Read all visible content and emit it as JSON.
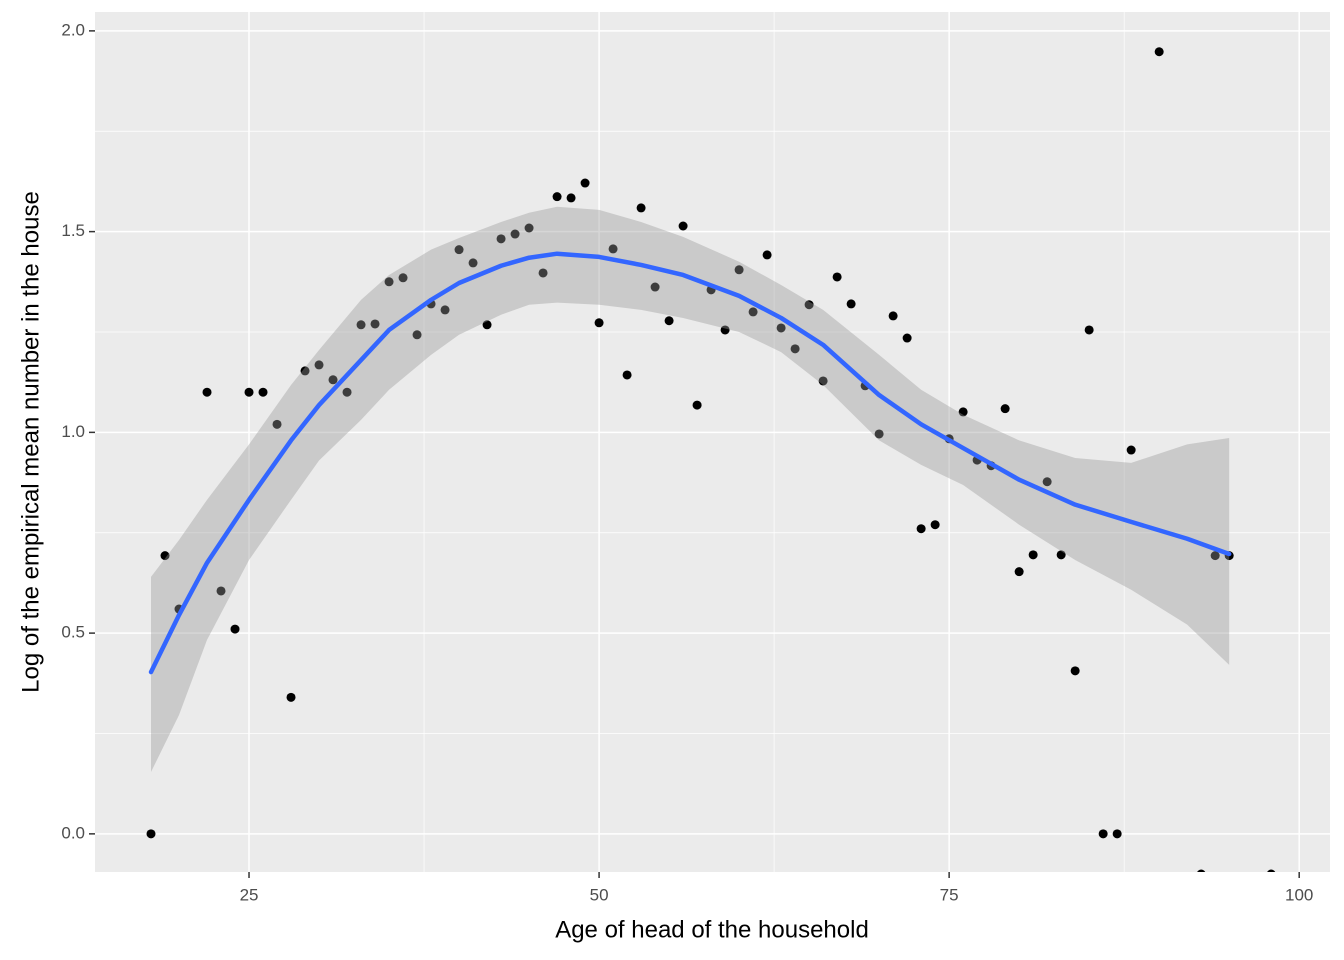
{
  "chart_data": {
    "type": "scatter",
    "x_label": "Age of head of the household",
    "y_label": "Log of the empirical mean number in the house",
    "xlim": [
      14.0,
      102.2
    ],
    "ylim": [
      -0.095,
      2.047
    ],
    "xticks": [
      25,
      50,
      75,
      100
    ],
    "yticks": [
      {
        "value": 0,
        "label": "0.0"
      },
      {
        "value": 0.5,
        "label": "0.5"
      },
      {
        "value": 1,
        "label": "1.0"
      },
      {
        "value": 1.5,
        "label": "1.5"
      },
      {
        "value": 2,
        "label": "2.0"
      }
    ],
    "minor_xticks": [
      37.5,
      62.5,
      87.5
    ],
    "minor_yticks": [
      0.25,
      0.75,
      1.25,
      1.75
    ],
    "grid": true,
    "points": {
      "color": "#000000",
      "x": [
        18,
        19,
        20,
        22,
        23,
        24,
        25,
        26,
        27,
        28,
        29,
        30,
        31,
        32,
        33,
        34,
        35,
        36,
        37,
        38,
        39,
        40,
        41,
        42,
        43,
        44,
        45,
        46,
        47,
        48,
        49,
        50,
        51,
        52,
        53,
        54,
        55,
        56,
        57,
        58,
        59,
        60,
        61,
        62,
        63,
        64,
        65,
        66,
        67,
        68,
        69,
        70,
        71,
        72,
        73,
        74,
        75,
        76,
        77,
        78,
        79,
        80,
        81,
        82,
        83,
        84,
        85,
        86,
        87,
        88,
        90,
        93,
        94,
        95,
        98
      ],
      "y": [
        0,
        0.693,
        0.56,
        1.1,
        0.605,
        0.51,
        1.1,
        1.1,
        1.02,
        0.34,
        1.153,
        1.168,
        1.131,
        1.1,
        1.268,
        1.27,
        1.375,
        1.385,
        1.243,
        1.32,
        1.305,
        1.455,
        1.422,
        1.268,
        1.482,
        1.494,
        1.509,
        1.397,
        1.587,
        1.584,
        1.621,
        1.273,
        1.457,
        1.143,
        1.559,
        1.362,
        1.278,
        1.514,
        1.068,
        1.355,
        1.255,
        1.405,
        1.3,
        1.442,
        1.26,
        1.208,
        1.318,
        1.128,
        1.387,
        1.32,
        1.116,
        0.996,
        1.29,
        1.235,
        0.76,
        0.77,
        0.984,
        1.051,
        0.931,
        0.917,
        1.059,
        0.653,
        0.695,
        0.877,
        0.695,
        0.406,
        1.255,
        0,
        0,
        0.956,
        1.948,
        -0.1,
        0.693,
        0.693,
        -0.1
      ]
    },
    "smooth": {
      "color": "#3366FF",
      "fill": "#999999",
      "x": [
        18,
        20,
        22,
        25,
        28,
        30,
        33,
        35,
        38,
        40,
        43,
        45,
        47,
        50,
        53,
        56,
        60,
        63,
        66,
        70,
        73,
        76,
        80,
        84,
        88,
        92,
        95
      ],
      "y": [
        0.403,
        0.545,
        0.675,
        0.832,
        0.98,
        1.068,
        1.18,
        1.255,
        1.33,
        1.372,
        1.415,
        1.435,
        1.445,
        1.437,
        1.417,
        1.392,
        1.34,
        1.285,
        1.218,
        1.093,
        1.02,
        0.961,
        0.882,
        0.82,
        0.777,
        0.735,
        0.697
      ],
      "upper": [
        0.64,
        0.732,
        0.832,
        0.97,
        1.118,
        1.205,
        1.33,
        1.392,
        1.455,
        1.484,
        1.524,
        1.547,
        1.562,
        1.554,
        1.524,
        1.487,
        1.425,
        1.367,
        1.305,
        1.193,
        1.106,
        1.044,
        0.98,
        0.936,
        0.924,
        0.97,
        0.986
      ],
      "lower": [
        0.154,
        0.296,
        0.483,
        0.682,
        0.832,
        0.93,
        1.031,
        1.106,
        1.193,
        1.243,
        1.293,
        1.318,
        1.323,
        1.318,
        1.305,
        1.285,
        1.25,
        1.2,
        1.118,
        0.98,
        0.919,
        0.869,
        0.77,
        0.682,
        0.608,
        0.521,
        0.421
      ]
    }
  }
}
